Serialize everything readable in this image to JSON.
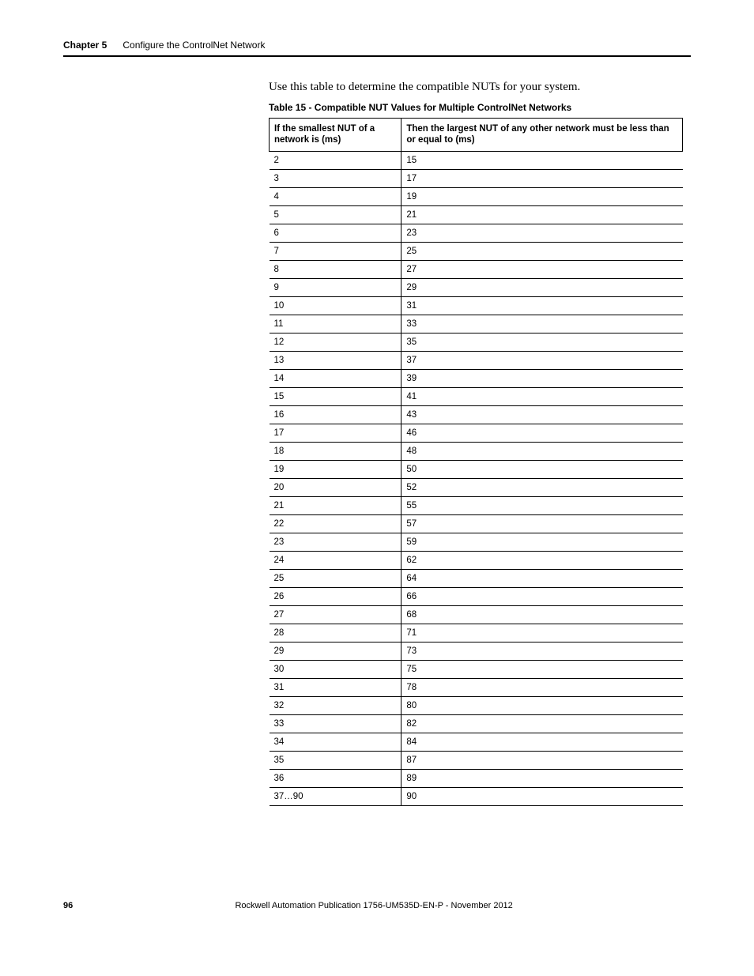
{
  "header": {
    "chapter_label": "Chapter 5",
    "chapter_title": "Configure the ControlNet Network"
  },
  "intro": "Use this table to determine the compatible NUTs for your system.",
  "table": {
    "caption": "Table 15 - Compatible NUT Values for Multiple ControlNet Networks",
    "col1_header": "If the smallest NUT of a network is (ms)",
    "col2_header": "Then the largest NUT of any other network must be less than or equal to (ms)",
    "rows": [
      {
        "a": "2",
        "b": "15"
      },
      {
        "a": "3",
        "b": "17"
      },
      {
        "a": "4",
        "b": "19"
      },
      {
        "a": "5",
        "b": "21"
      },
      {
        "a": "6",
        "b": "23"
      },
      {
        "a": "7",
        "b": "25"
      },
      {
        "a": "8",
        "b": "27"
      },
      {
        "a": "9",
        "b": "29"
      },
      {
        "a": "10",
        "b": "31"
      },
      {
        "a": "11",
        "b": "33"
      },
      {
        "a": "12",
        "b": "35"
      },
      {
        "a": "13",
        "b": "37"
      },
      {
        "a": "14",
        "b": "39"
      },
      {
        "a": "15",
        "b": "41"
      },
      {
        "a": "16",
        "b": "43"
      },
      {
        "a": "17",
        "b": "46"
      },
      {
        "a": "18",
        "b": "48"
      },
      {
        "a": "19",
        "b": "50"
      },
      {
        "a": "20",
        "b": "52"
      },
      {
        "a": "21",
        "b": "55"
      },
      {
        "a": "22",
        "b": "57"
      },
      {
        "a": "23",
        "b": "59"
      },
      {
        "a": "24",
        "b": "62"
      },
      {
        "a": "25",
        "b": "64"
      },
      {
        "a": "26",
        "b": "66"
      },
      {
        "a": "27",
        "b": "68"
      },
      {
        "a": "28",
        "b": "71"
      },
      {
        "a": "29",
        "b": "73"
      },
      {
        "a": "30",
        "b": "75"
      },
      {
        "a": "31",
        "b": "78"
      },
      {
        "a": "32",
        "b": "80"
      },
      {
        "a": "33",
        "b": "82"
      },
      {
        "a": "34",
        "b": "84"
      },
      {
        "a": "35",
        "b": "87"
      },
      {
        "a": "36",
        "b": "89"
      },
      {
        "a": "37…90",
        "b": "90"
      }
    ]
  },
  "footer": {
    "page_num": "96",
    "publication": "Rockwell Automation Publication 1756-UM535D-EN-P - November 2012"
  }
}
